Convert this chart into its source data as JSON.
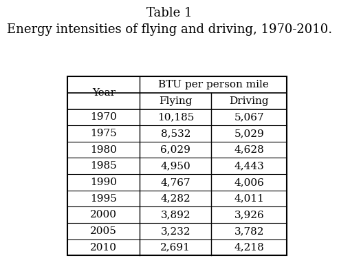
{
  "title_line1": "Table 1",
  "title_line2": "Energy intensities of flying and driving, 1970-2010.",
  "col_header_merged": "BTU per person mile",
  "col_header_left": "Year",
  "col_header_flying": "Flying",
  "col_header_driving": "Driving",
  "years": [
    "1970",
    "1975",
    "1980",
    "1985",
    "1990",
    "1995",
    "2000",
    "2005",
    "2010"
  ],
  "flying": [
    "10,185",
    "8,532",
    "6,029",
    "4,950",
    "4,767",
    "4,282",
    "3,892",
    "3,232",
    "2,691"
  ],
  "driving": [
    "5,067",
    "5,029",
    "4,628",
    "4,443",
    "4,006",
    "4,011",
    "3,926",
    "3,782",
    "4,218"
  ],
  "bg_color": "#ffffff",
  "text_color": "#000000",
  "title_fontsize": 13,
  "header_fontsize": 11,
  "cell_fontsize": 11
}
